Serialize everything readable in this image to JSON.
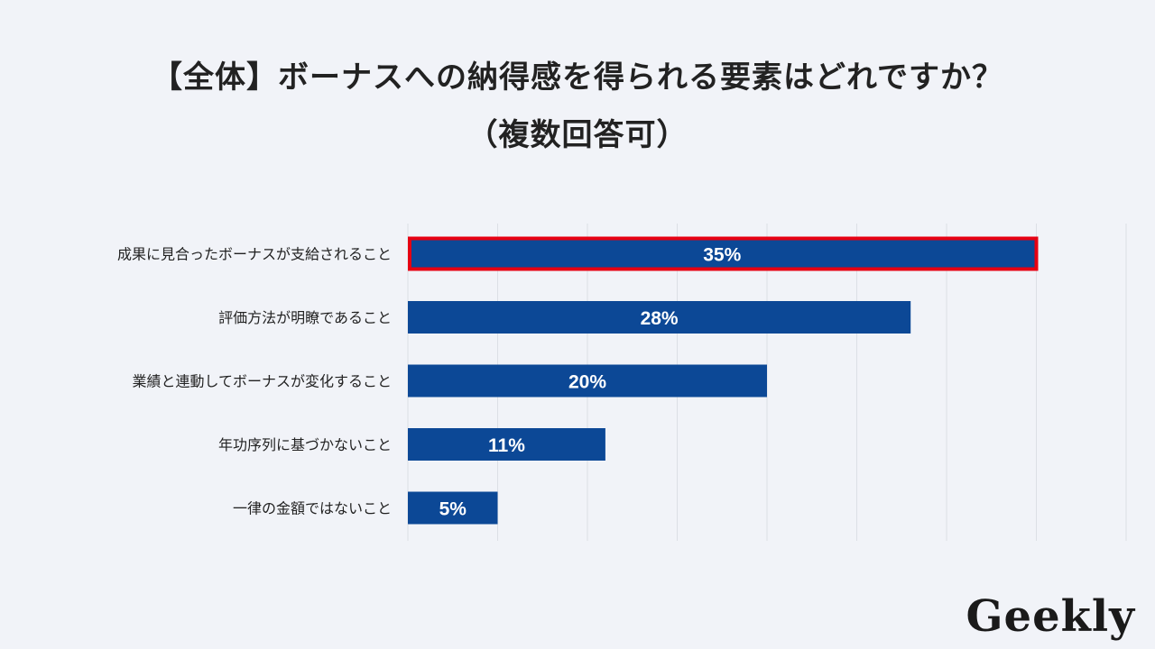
{
  "title": {
    "line1": "【全体】ボーナスへの納得感を得られる要素はどれですか？",
    "line2": "（複数回答可）"
  },
  "chart_data": {
    "type": "bar",
    "orientation": "horizontal",
    "categories": [
      "成果に見合ったボーナスが支給されること",
      "評価方法が明瞭であること",
      "業績と連動してボーナスが変化すること",
      "年功序列に基づかないこと",
      "一律の金額ではないこと"
    ],
    "values": [
      35,
      28,
      20,
      11,
      5
    ],
    "value_labels": [
      "35%",
      "28%",
      "20%",
      "11%",
      "5%"
    ],
    "xlim": [
      0,
      40
    ],
    "grid": true,
    "highlighted_index": 0,
    "colors": {
      "bar": "#0c4896",
      "highlight": "#e60012",
      "grid": "#dcdfe5",
      "label": "#ffffff"
    }
  },
  "logo": {
    "text": "Geekly"
  }
}
